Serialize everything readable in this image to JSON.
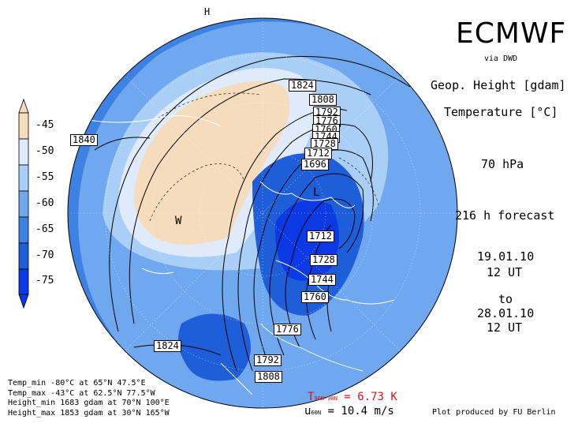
{
  "header": {
    "title": "ECMWF",
    "source": "via DWD"
  },
  "panel": {
    "var1": "Geop. Height [gdam]",
    "var2": "Temperature [°C]",
    "level": "70 hPa",
    "forecast": "216 h forecast",
    "init_date": "19.01.10",
    "init_time": "12 UT",
    "to": "to",
    "valid_date": "28.01.10",
    "valid_time": "12 UT"
  },
  "legend": {
    "labels": [
      "-45",
      "-50",
      "-55",
      "-60",
      "-65",
      "-70",
      "-75"
    ],
    "colors": [
      "#f5dcbd",
      "#dfeafa",
      "#a9cff7",
      "#6fa8ee",
      "#3d82e3",
      "#1f5ed9",
      "#0b39e6"
    ]
  },
  "footer": {
    "temp_min": "Temp_min -80°C at 65°N 47.5°E",
    "temp_max": "Temp_max -43°C at 62.5°N 77.5°W",
    "height_min": "Height_min 1683 gdam at 70°N 100°E",
    "height_max": "Height_max 1853 gdam at 30°N 165°W"
  },
  "stats": {
    "t_label": "T",
    "t_sub": "90N-90N",
    "t_value": "= 6.73 K",
    "u_label": "u",
    "u_sub": "60N",
    "u_value": "= 10.4 m/s"
  },
  "credit": "Plot produced by FU Berlin",
  "map": {
    "contour_labels": [
      "1824",
      "1808",
      "1792",
      "1776",
      "1760",
      "1744",
      "1728",
      "1712",
      "1696",
      "1840",
      "1712",
      "1728",
      "1744",
      "1760",
      "1776",
      "1792",
      "1808",
      "1824"
    ],
    "markers": {
      "low": "L",
      "warm": "W",
      "high": "H"
    }
  }
}
